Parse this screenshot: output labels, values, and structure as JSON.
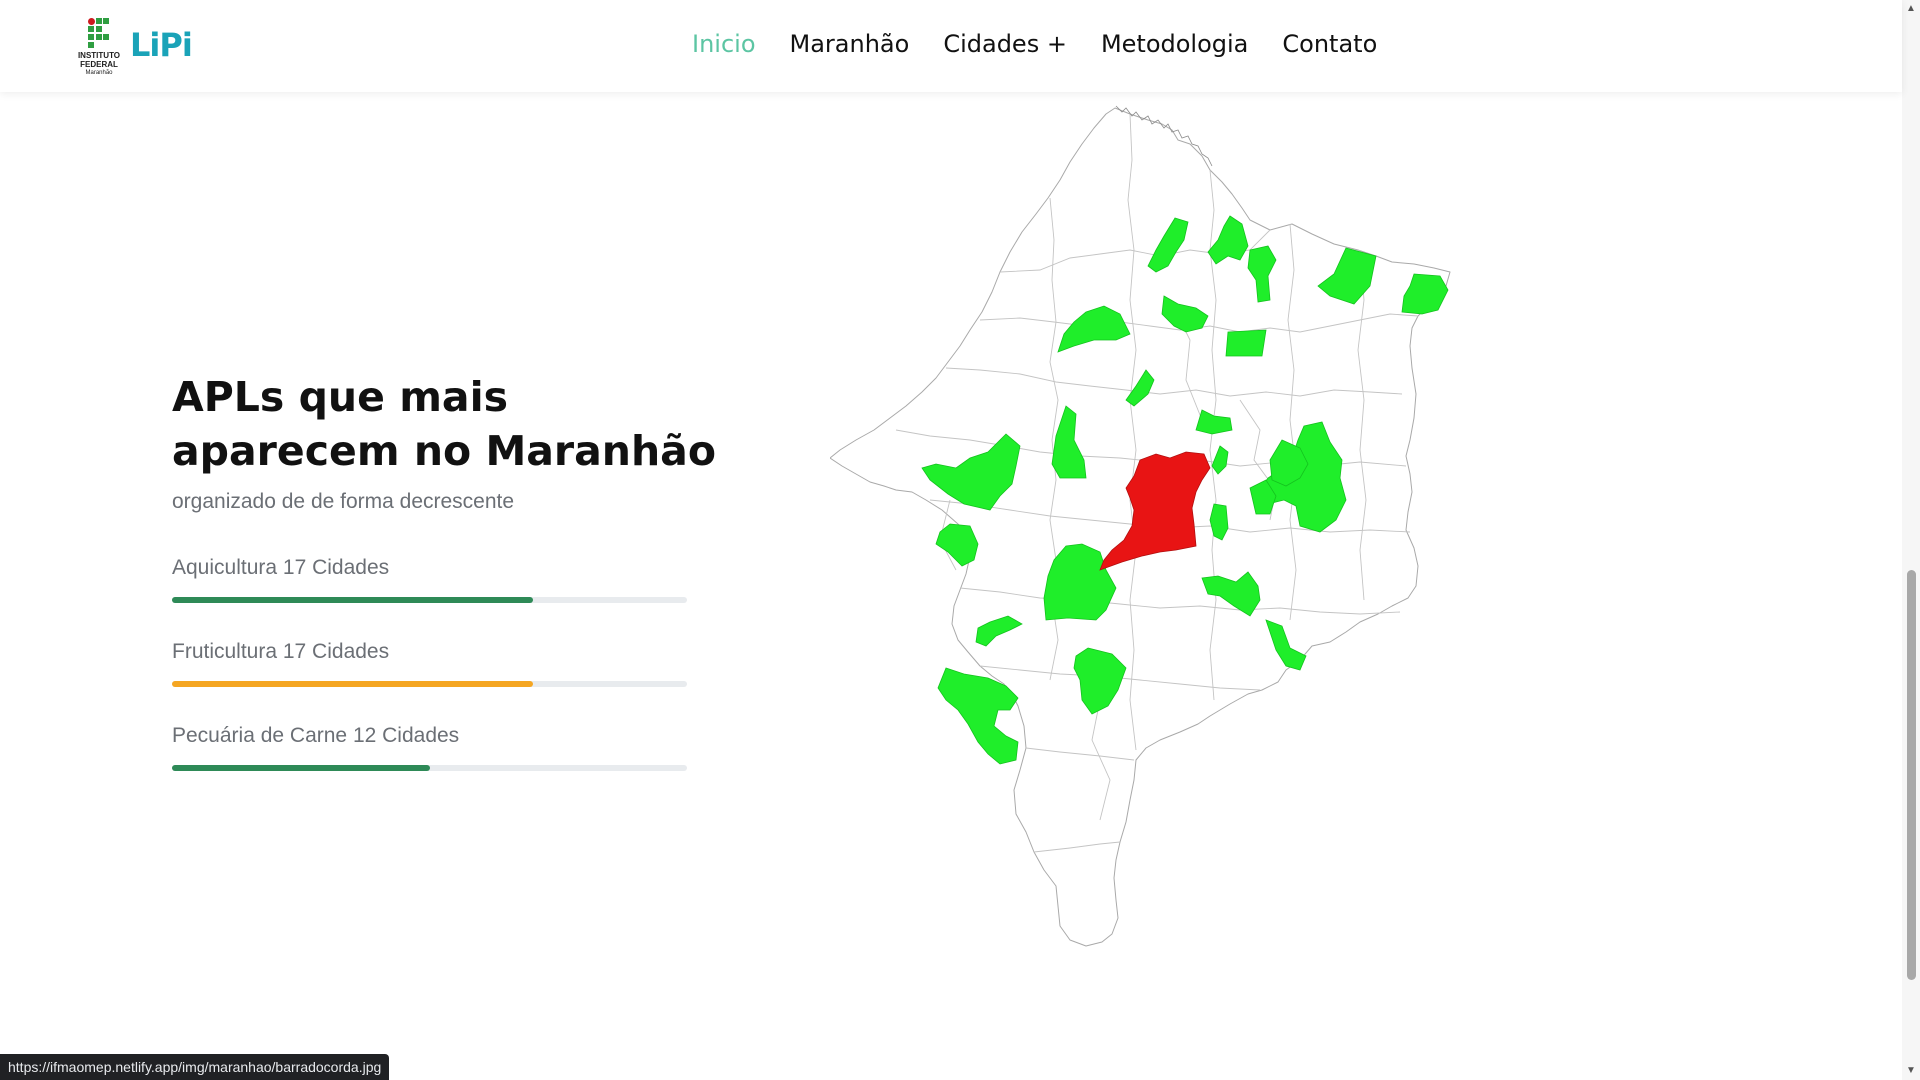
{
  "header": {
    "logo_ifma": {
      "line1": "INSTITUTO",
      "line2": "FEDERAL",
      "line3": "Maranhão"
    },
    "logo_text": "LiPi",
    "nav": [
      {
        "label": "Inicio",
        "active": true
      },
      {
        "label": "Maranhão",
        "active": false
      },
      {
        "label": "Cidades +",
        "active": false
      },
      {
        "label": "Metodologia",
        "active": false
      },
      {
        "label": "Contato",
        "active": false
      }
    ]
  },
  "main": {
    "title": "APLs que mais aparecem no Maranhão",
    "subtitle": "organizado de de forma decrescente",
    "bars": [
      {
        "label": "Aquicultura 17 Cidades",
        "percent": 70,
        "color": "#2e8a57"
      },
      {
        "label": "Fruticultura 17 Cidades",
        "percent": 70,
        "color": "#f5a622"
      },
      {
        "label": "Pecuária de Carne 12 Cidades",
        "percent": 50,
        "color": "#2e8a57"
      }
    ]
  },
  "map": {
    "highlight_color": "#e81414",
    "municipality_color": "#1fee2a"
  },
  "status_bar": {
    "url": "https://ifmaomep.netlify.app/img/maranhao/barradocorda.jpg"
  }
}
